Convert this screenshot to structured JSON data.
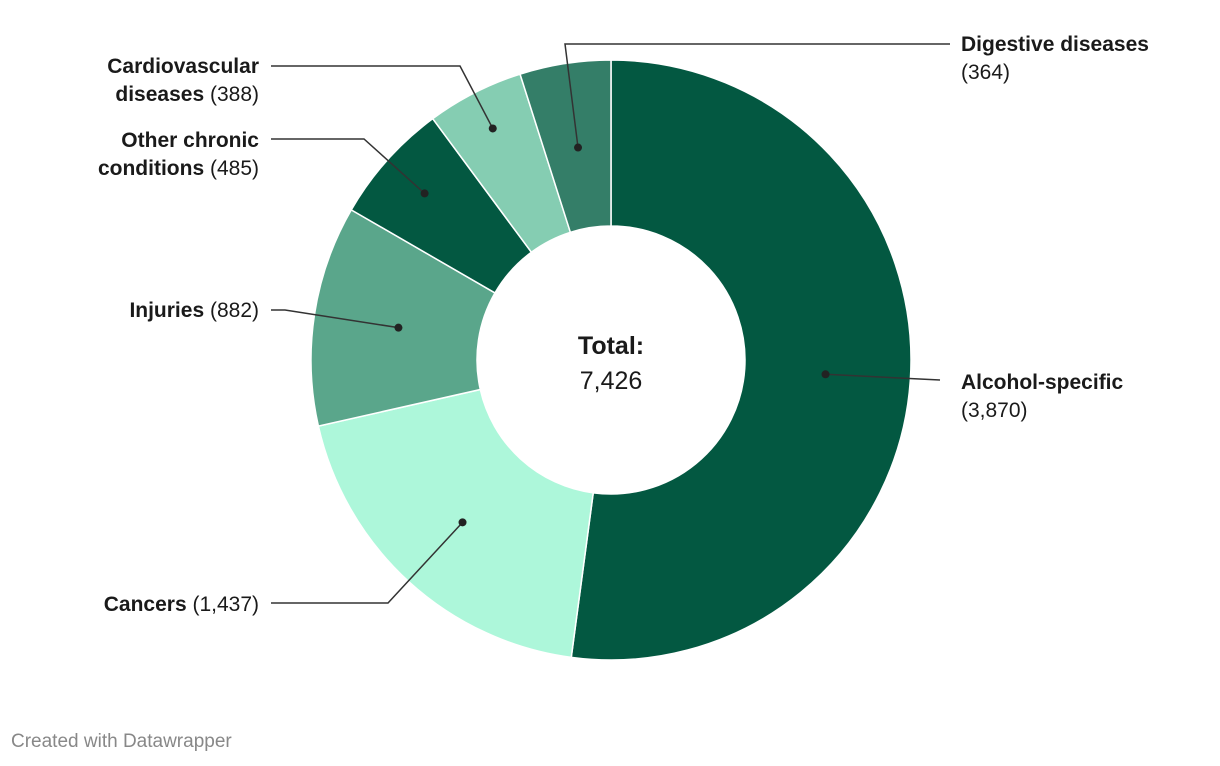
{
  "chart_data": {
    "type": "pie",
    "variant": "donut",
    "categories": [
      "Alcohol-specific",
      "Cancers",
      "Injuries",
      "Other chronic conditions",
      "Cardiovascular diseases",
      "Digestive diseases"
    ],
    "values": [
      3870,
      1437,
      882,
      485,
      388,
      364
    ],
    "colors": [
      "#035841",
      "#adf7da",
      "#5aa68b",
      "#035841",
      "#85cdb2",
      "#347e68"
    ],
    "value_labels": [
      "(3,870)",
      "(1,437)",
      "(882)",
      "(485)",
      "(388)",
      "(364)"
    ],
    "label_lines": [
      [
        {
          "text": "Alcohol-specific",
          "bold": true
        },
        {
          "text": "(3,870)",
          "bold": false
        }
      ],
      [
        {
          "text": "Cancers (1,437)",
          "bold": false
        }
      ],
      [
        {
          "text": "Injuries (882)",
          "bold": false
        }
      ],
      [
        {
          "text": "Other chronic",
          "bold": true
        },
        {
          "text": "conditions (485)",
          "bold": false
        }
      ],
      [
        {
          "text": "Cardiovascular",
          "bold": true
        },
        {
          "text": "diseases (388)",
          "bold": false
        }
      ],
      [
        {
          "text": "Digestive diseases",
          "bold": true
        },
        {
          "text": "(364)",
          "bold": false
        }
      ]
    ],
    "center_title": "Total:",
    "center_value": "7,426",
    "start": "top, clockwise"
  },
  "footer": {
    "credit": "Created with Datawrapper"
  }
}
